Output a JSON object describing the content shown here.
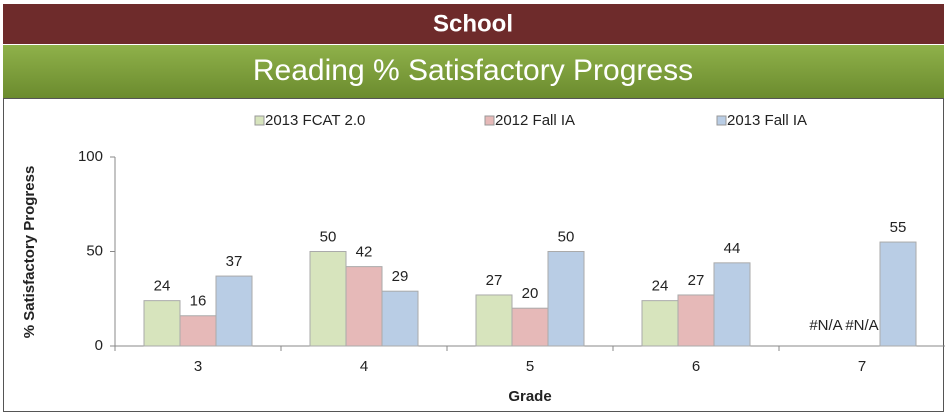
{
  "header": {
    "title": "School"
  },
  "chart_data": {
    "type": "bar",
    "title": "Reading % Satisfactory Progress",
    "x_label": "Grade",
    "y_label": "% Satisfactory Progress",
    "categories": [
      "3",
      "4",
      "5",
      "6",
      "7"
    ],
    "series": [
      {
        "name": "2013 FCAT 2.0",
        "color": "#d7e4bd",
        "values": [
          24,
          50,
          27,
          24,
          null
        ],
        "value_labels": [
          "24",
          "50",
          "27",
          "24",
          "#N/A"
        ]
      },
      {
        "name": "2012 Fall IA",
        "color": "#e6b9b8",
        "values": [
          16,
          42,
          20,
          27,
          null
        ],
        "value_labels": [
          "16",
          "42",
          "20",
          "27",
          "#N/A"
        ]
      },
      {
        "name": "2013 Fall IA",
        "color": "#b9cde5",
        "values": [
          37,
          29,
          50,
          44,
          55
        ],
        "value_labels": [
          "37",
          "29",
          "50",
          "44",
          "55"
        ]
      }
    ],
    "ylim": [
      0,
      100
    ],
    "yticks": [
      0,
      50,
      100
    ],
    "grid": false,
    "legend": "top"
  }
}
